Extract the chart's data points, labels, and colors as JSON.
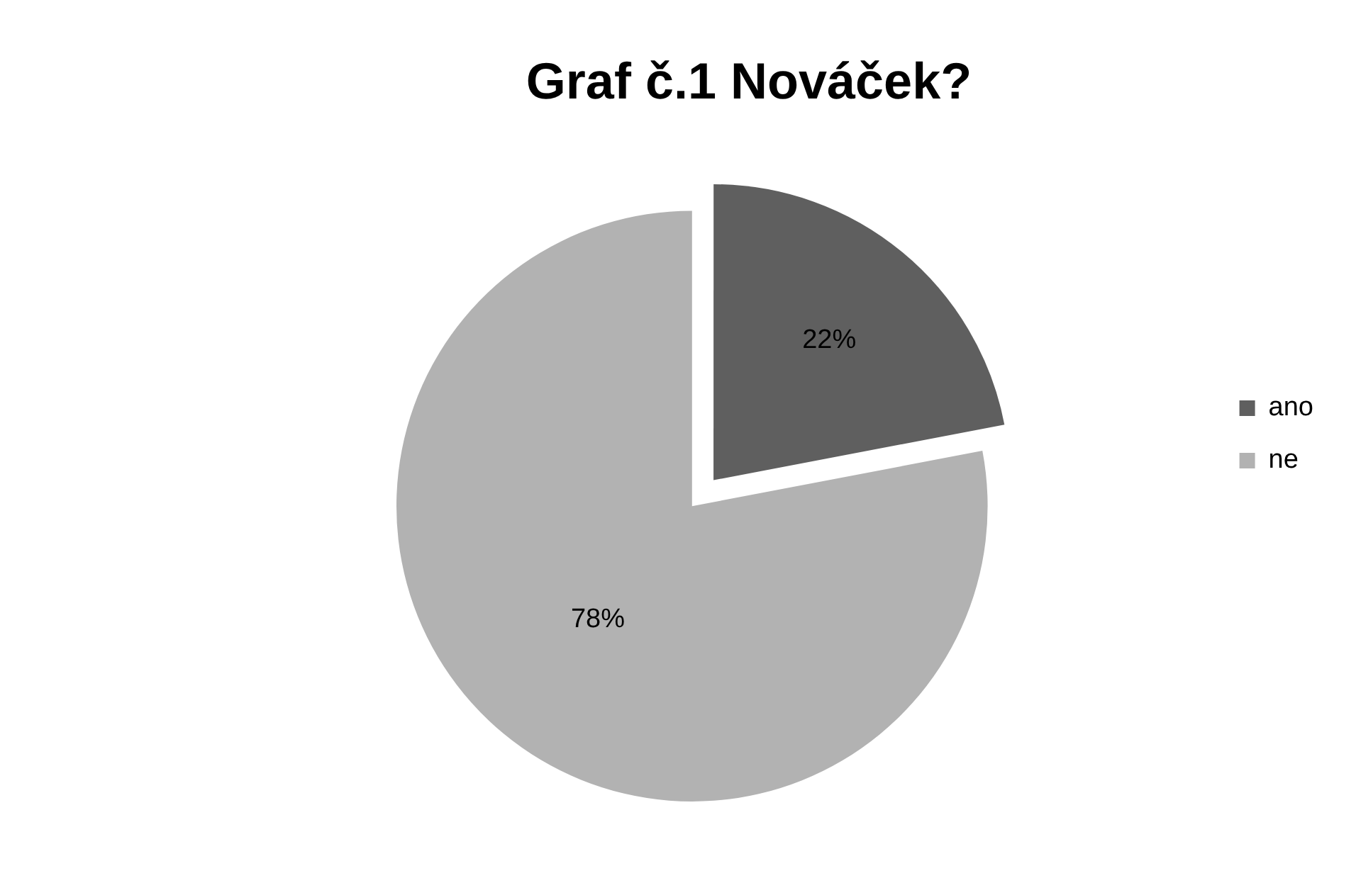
{
  "chart_data": {
    "type": "pie",
    "title": "Graf č.1 Nováček?",
    "categories": [
      "ano",
      "ne"
    ],
    "values": [
      22,
      78
    ],
    "colors": [
      "#5f5f5f",
      "#b2b2b2"
    ],
    "value_labels": [
      "22%",
      "78%"
    ],
    "legend": "right"
  }
}
